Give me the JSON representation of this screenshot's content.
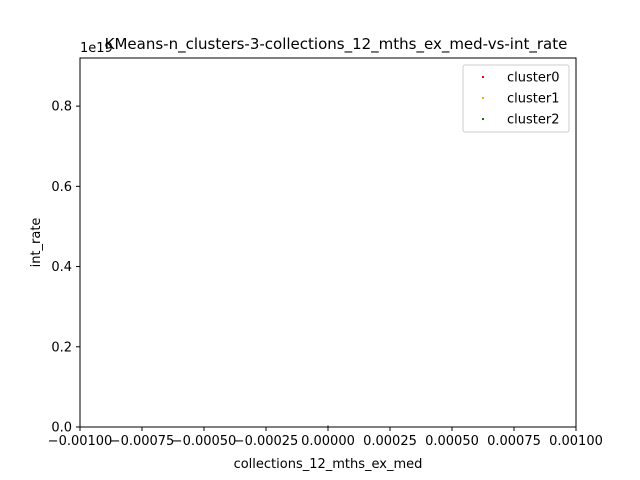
{
  "chart_data": {
    "type": "scatter",
    "title": "KMeans-n_clusters-3-collections_12_mths_ex_med-vs-int_rate",
    "xlabel": "collections_12_mths_ex_med",
    "ylabel": "int_rate",
    "y_offset_text": "1e19",
    "xlim": [
      -0.001,
      0.001
    ],
    "ylim": [
      0,
      0.92
    ],
    "x_ticks": [
      -0.001,
      -0.00075,
      -0.0005,
      -0.00025,
      0.0,
      0.00025,
      0.0005,
      0.00075,
      0.001
    ],
    "x_tick_labels": [
      "−0.00100",
      "−0.00075",
      "−0.00050",
      "−0.00025",
      "0.00000",
      "0.00025",
      "0.00050",
      "0.00075",
      "0.00100"
    ],
    "y_ticks": [
      0.0,
      0.2,
      0.4,
      0.6,
      0.8
    ],
    "y_tick_labels": [
      "0.0",
      "0.2",
      "0.4",
      "0.6",
      "0.8"
    ],
    "legend_position": "top-right",
    "series": [
      {
        "name": "cluster0",
        "color": "#ff0000",
        "points": []
      },
      {
        "name": "cluster1",
        "color": "#ffa500",
        "points": []
      },
      {
        "name": "cluster2",
        "color": "#008000",
        "points": [
          [
            0.0,
            0.0
          ]
        ]
      }
    ]
  }
}
